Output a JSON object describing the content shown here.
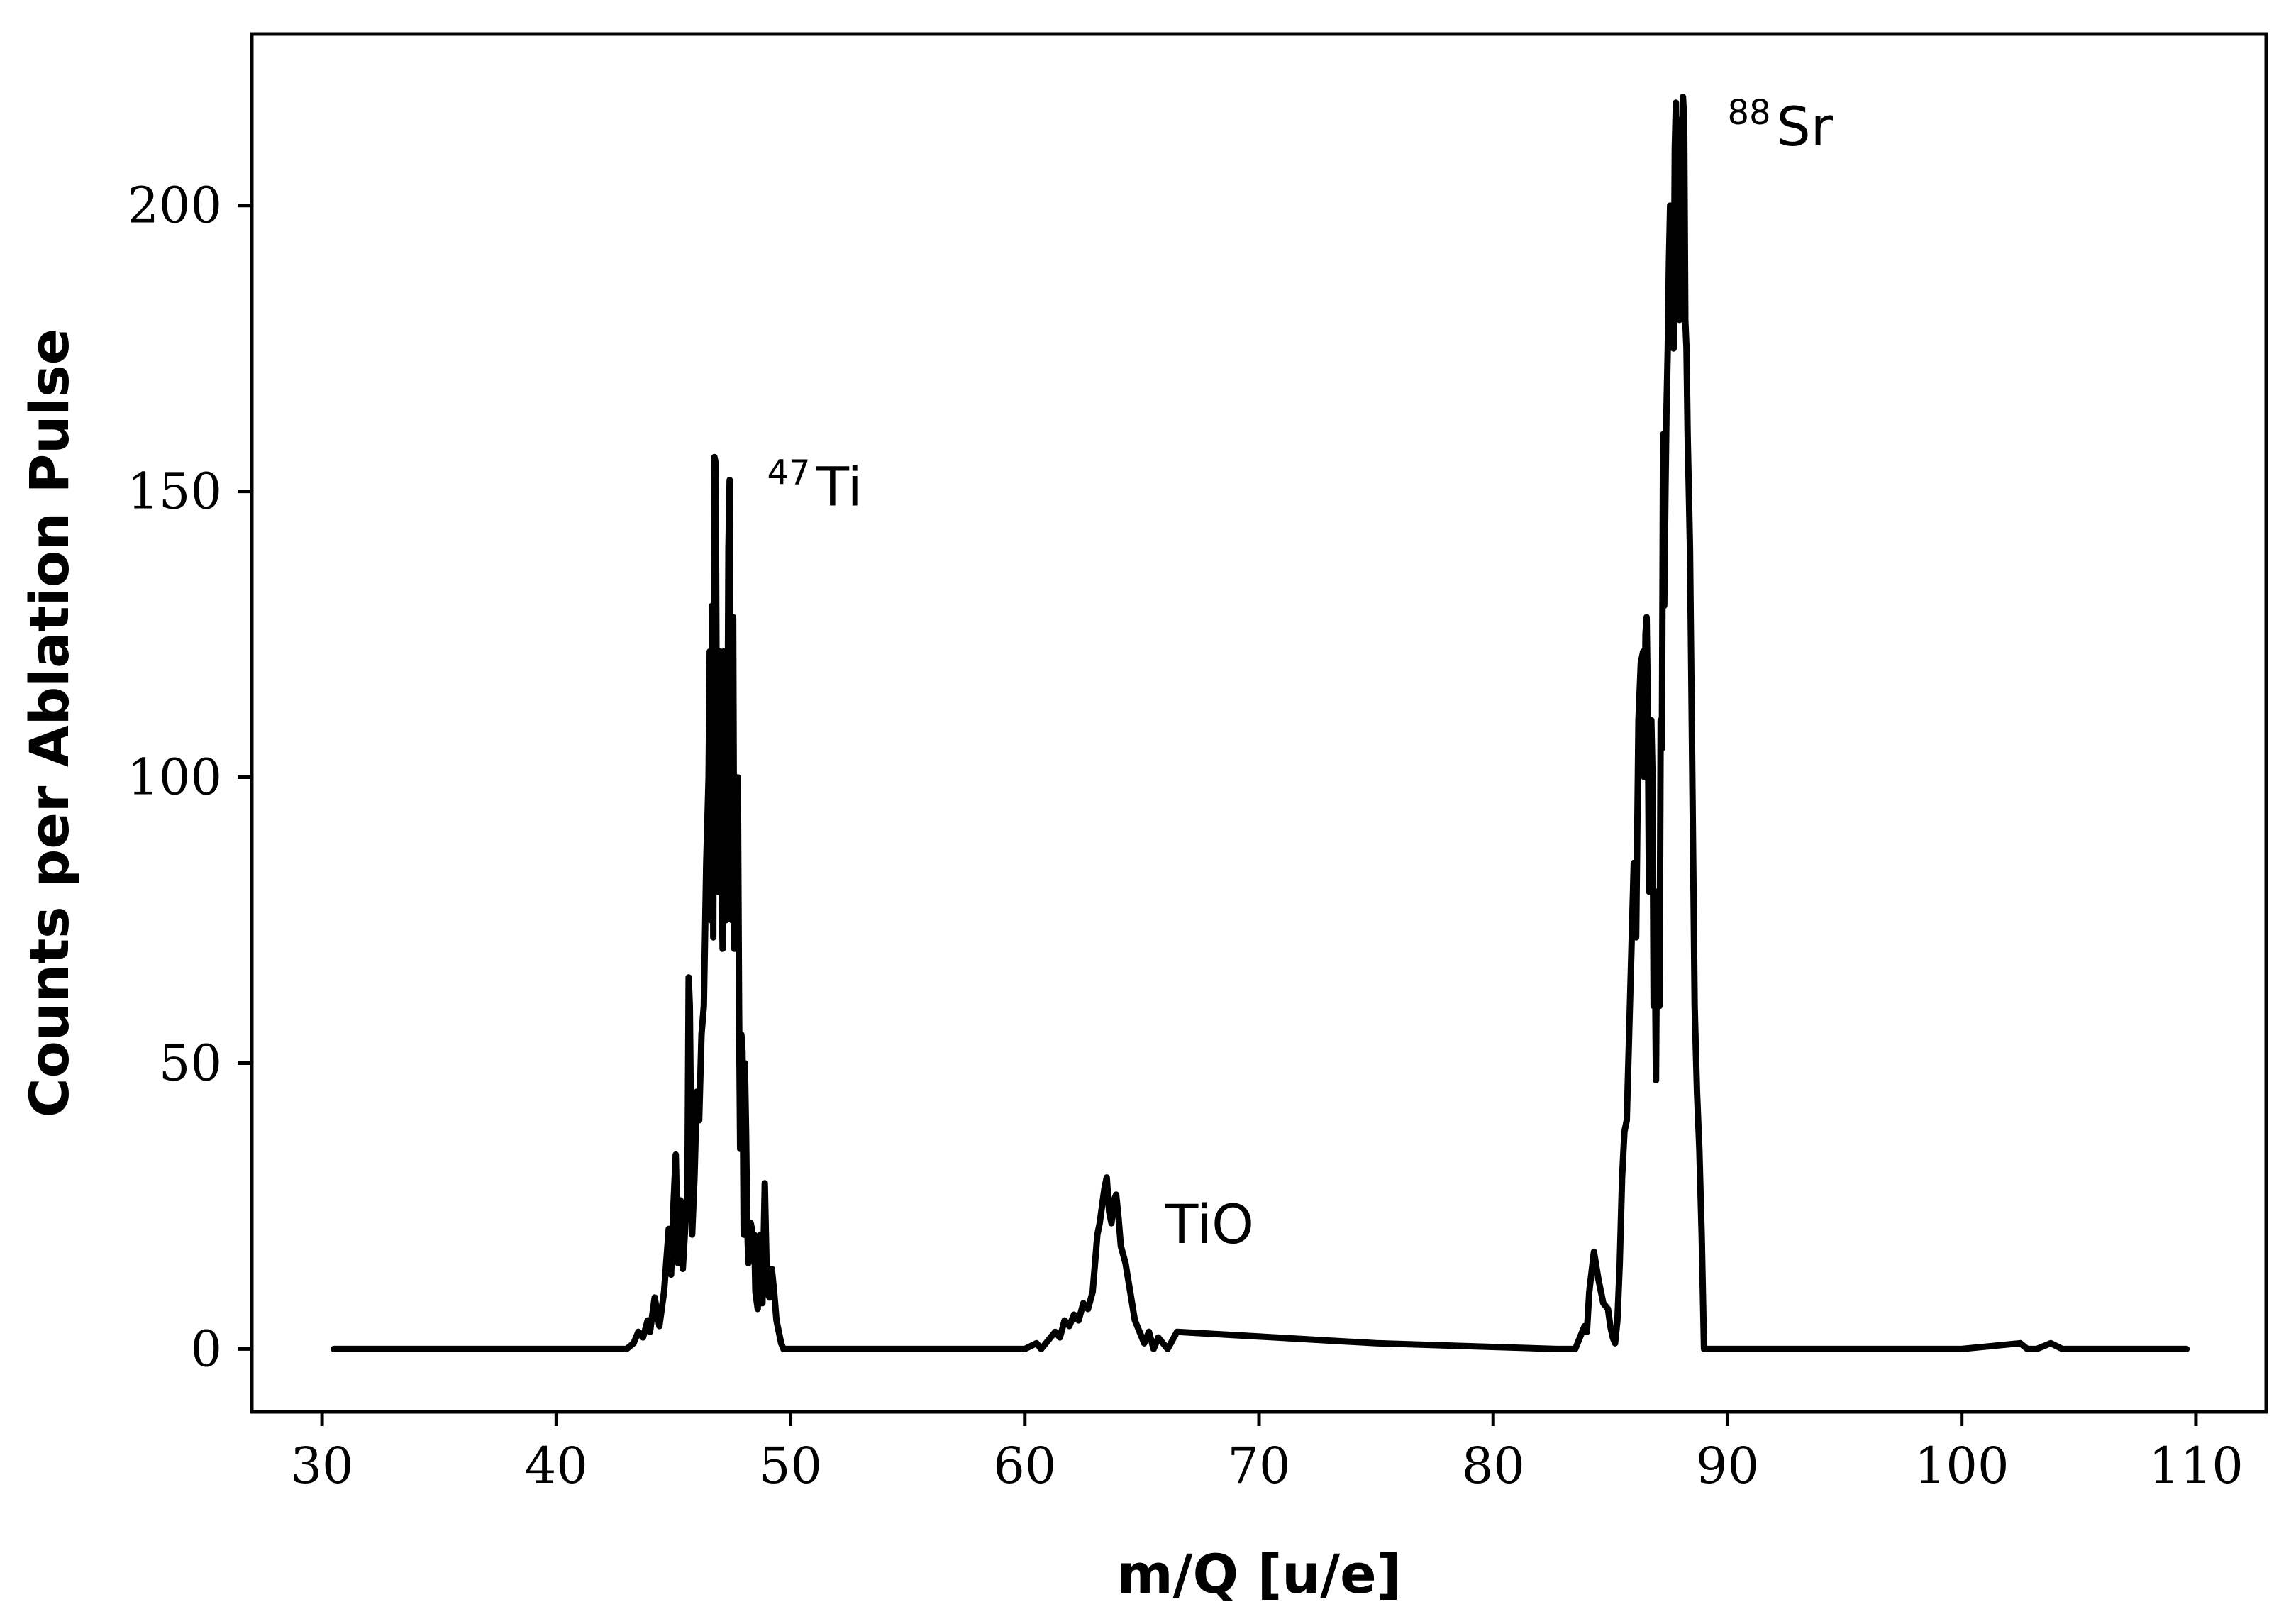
{
  "chart_data": {
    "type": "line",
    "title": "",
    "xlabel": "m/Q [u/e]",
    "ylabel": "Counts per Ablation Pulse",
    "xlim": [
      27,
      113
    ],
    "ylim": [
      -11,
      230
    ],
    "x_ticks": [
      30,
      40,
      50,
      60,
      70,
      80,
      90,
      100,
      110
    ],
    "y_ticks": [
      0,
      50,
      100,
      150,
      200
    ],
    "grid": false,
    "legend": "none",
    "line_color": "#000000",
    "annotations": [
      {
        "sup": "47",
        "text": "Ti",
        "x": 49.0,
        "y": 150
      },
      {
        "sup": "",
        "text": "TiO",
        "x": 66.0,
        "y": 21
      },
      {
        "sup": "88",
        "text": "Sr",
        "x": 90.0,
        "y": 213
      }
    ],
    "series": [
      {
        "x": [
          30.5,
          37.0,
          39.0,
          43.0,
          43.3,
          43.5,
          43.7,
          43.9,
          44.0,
          44.2,
          44.4,
          44.6,
          44.8,
          44.9,
          45.0,
          45.1,
          45.2,
          45.3,
          45.4,
          45.5,
          45.6,
          45.65,
          45.7,
          45.8,
          45.9,
          46.0,
          46.1,
          46.2,
          46.3,
          46.4,
          46.5,
          46.55,
          46.6,
          46.65,
          46.7,
          46.75,
          46.8,
          46.85,
          46.9,
          46.95,
          47.0,
          47.05,
          47.1,
          47.15,
          47.2,
          47.25,
          47.3,
          47.35,
          47.4,
          47.45,
          47.5,
          47.55,
          47.6,
          47.65,
          47.7,
          47.75,
          47.8,
          47.85,
          47.9,
          47.95,
          48.0,
          48.05,
          48.1,
          48.15,
          48.2,
          48.25,
          48.3,
          48.35,
          48.4,
          48.45,
          48.5,
          48.6,
          48.7,
          48.8,
          48.9,
          49.0,
          49.1,
          49.2,
          49.3,
          49.4,
          49.5,
          49.6,
          49.7,
          49.8,
          49.9,
          50.0,
          50.2,
          50.5,
          55.0,
          60.0,
          60.5,
          60.7,
          60.9,
          61.1,
          61.3,
          61.5,
          61.7,
          61.9,
          62.1,
          62.3,
          62.5,
          62.7,
          62.9,
          63.0,
          63.1,
          63.2,
          63.3,
          63.4,
          63.5,
          63.6,
          63.7,
          63.8,
          63.9,
          64.0,
          64.1,
          64.3,
          64.5,
          64.7,
          64.9,
          65.1,
          65.3,
          65.5,
          65.7,
          65.9,
          66.1,
          66.5,
          75.0,
          82.7,
          83.0,
          83.3,
          83.5,
          83.7,
          83.9,
          84.0,
          84.1,
          84.3,
          84.5,
          84.7,
          84.9,
          85.0,
          85.1,
          85.2,
          85.3,
          85.4,
          85.5,
          85.6,
          85.7,
          85.8,
          85.9,
          86.0,
          86.1,
          86.2,
          86.3,
          86.4,
          86.45,
          86.5,
          86.55,
          86.6,
          86.65,
          86.7,
          86.75,
          86.8,
          86.85,
          86.9,
          86.95,
          87.0,
          87.05,
          87.1,
          87.15,
          87.2,
          87.25,
          87.3,
          87.35,
          87.4,
          87.45,
          87.5,
          87.55,
          87.6,
          87.65,
          87.7,
          87.75,
          87.8,
          87.85,
          87.9,
          87.95,
          88.0,
          88.05,
          88.1,
          88.15,
          88.2,
          88.25,
          88.3,
          88.35,
          88.4,
          88.45,
          88.5,
          88.55,
          88.6,
          88.7,
          88.8,
          88.9,
          89.0,
          90.0,
          94.0,
          95.0,
          96.0,
          100.0,
          102.5,
          102.8,
          103.2,
          103.8,
          104.3,
          105.0,
          109.6
        ],
        "y": [
          0,
          0,
          0,
          0,
          1,
          3,
          2,
          5,
          3,
          9,
          4,
          10,
          21,
          13,
          25,
          34,
          15,
          26,
          14,
          21,
          28,
          65,
          60,
          20,
          30,
          45,
          40,
          55,
          60,
          85,
          100,
          122,
          75,
          130,
          72,
          156,
          155,
          110,
          80,
          82,
          122,
          85,
          70,
          122,
          88,
          75,
          95,
          140,
          152,
          100,
          75,
          128,
          70,
          100,
          82,
          100,
          60,
          35,
          55,
          52,
          20,
          50,
          38,
          22,
          15,
          19,
          22,
          21,
          17,
          20,
          10,
          7,
          20,
          8,
          29,
          10,
          9,
          14,
          10,
          5,
          3,
          1,
          0,
          0,
          0,
          0,
          0,
          0,
          0,
          0,
          1,
          0,
          1,
          2,
          3,
          2,
          5,
          4,
          6,
          5,
          8,
          7,
          10,
          15,
          20,
          22,
          25,
          28,
          30,
          24,
          22,
          26,
          27,
          23,
          18,
          15,
          10,
          5,
          3,
          1,
          3,
          0,
          2,
          1,
          0,
          3,
          1,
          0,
          0,
          0,
          0,
          2,
          4,
          3,
          10,
          17,
          12,
          8,
          7,
          4,
          2,
          1,
          5,
          15,
          30,
          38,
          40,
          55,
          70,
          85,
          72,
          110,
          120,
          122,
          100,
          125,
          128,
          112,
          80,
          88,
          110,
          100,
          60,
          70,
          47,
          80,
          65,
          60,
          110,
          105,
          160,
          130,
          150,
          165,
          175,
          190,
          200,
          180,
          185,
          175,
          210,
          218,
          200,
          215,
          180,
          190,
          200,
          219,
          215,
          180,
          175,
          160,
          150,
          140,
          120,
          100,
          80,
          60,
          45,
          35,
          20,
          0,
          0,
          0,
          0,
          0,
          0,
          1,
          0,
          0,
          1,
          0,
          0,
          0
        ]
      }
    ]
  }
}
